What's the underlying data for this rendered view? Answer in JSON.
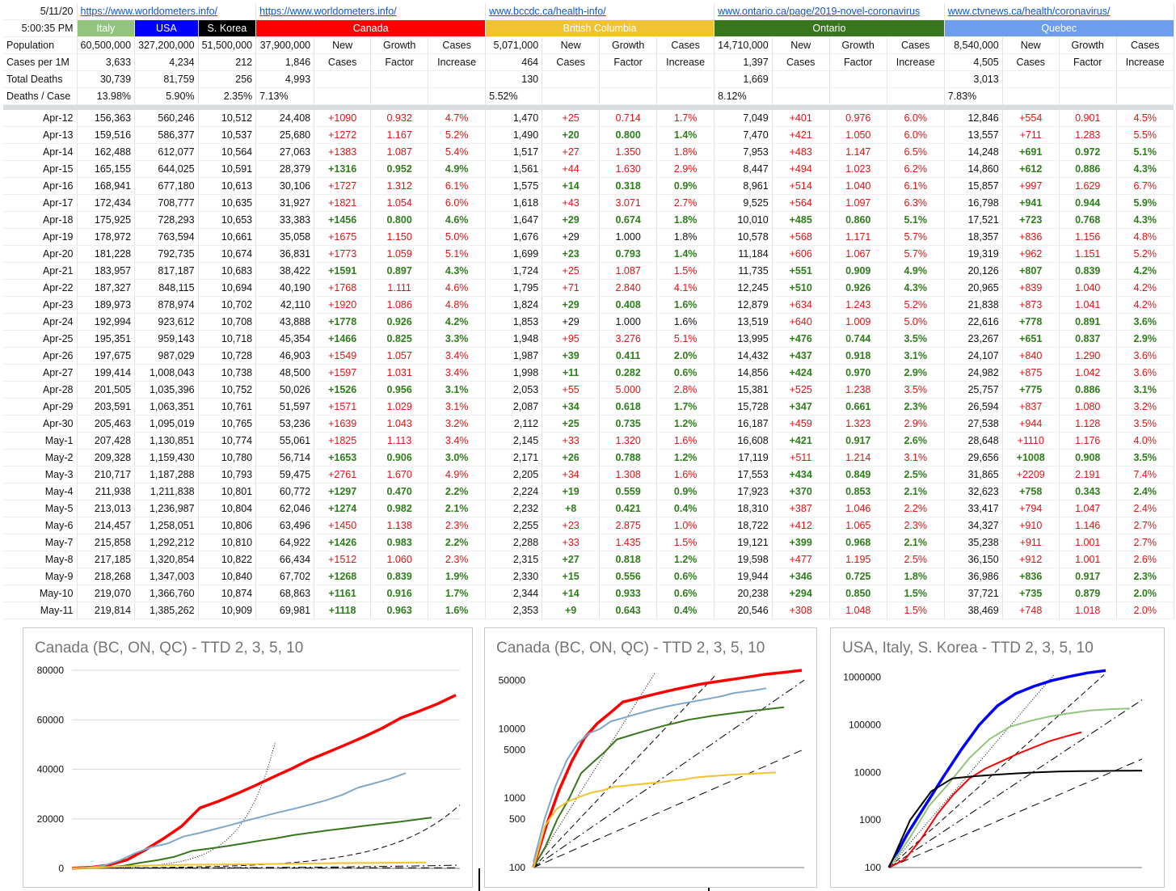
{
  "header": {
    "date": "5/11/20",
    "time": "5:00:35 PM",
    "links": [
      "https://www.worldometers.info/",
      "https://www.worldometers.info/",
      "www.bccdc.ca/health-info/",
      "www.ontario.ca/page/2019-novel-coronavirus",
      "www.ctvnews.ca/health/coronavirus/"
    ],
    "countries": [
      "Italy",
      "USA",
      "S. Korea"
    ],
    "regions": [
      "Canada",
      "British Columbia",
      "Ontario",
      "Quebec"
    ],
    "row_labels": [
      "Population",
      "Cases per 1M",
      "Total Deaths",
      "Deaths / Case"
    ],
    "col_new": [
      "New",
      "Cases"
    ],
    "col_growth": [
      "Growth",
      "Factor"
    ],
    "col_cases": [
      "Cases",
      "Increase"
    ],
    "population": [
      "60,500,000",
      "327,200,000",
      "51,500,000",
      "37,900,000",
      "5,071,000",
      "14,710,000",
      "8,540,000"
    ],
    "cases_per_1m": [
      "3,633",
      "4,234",
      "212",
      "1,846",
      "464",
      "1,397",
      "4,505"
    ],
    "total_deaths": [
      "30,739",
      "81,759",
      "256",
      "4,993",
      "130",
      "1,669",
      "3,013"
    ],
    "deaths_per_case": [
      "13.98%",
      "5.90%",
      "2.35%",
      "7.13%",
      "5.52%",
      "8.12%",
      "7.83%"
    ],
    "colors": {
      "italy": "#93c47d",
      "usa": "#0000ff",
      "korea": "#000000",
      "canada": "#ff0000",
      "bc": "#f1c232",
      "ontario": "#38761d",
      "quebec": "#6d9eeb"
    }
  },
  "rows": [
    [
      "Apr-12",
      "156,363",
      "560,246",
      "10,512",
      "24,408",
      "+1090",
      "0.932",
      "4.7%",
      "1,470",
      "+25",
      "0.714",
      "1.7%",
      "7,049",
      "+401",
      "0.976",
      "6.0%",
      "12,846",
      "+554",
      "0.901",
      "4.5%"
    ],
    [
      "Apr-13",
      "159,516",
      "586,377",
      "10,537",
      "25,680",
      "+1272",
      "1.167",
      "5.2%",
      "1,490",
      "+20",
      "0.800",
      "1.4%",
      "7,470",
      "+421",
      "1.050",
      "6.0%",
      "13,557",
      "+711",
      "1.283",
      "5.5%"
    ],
    [
      "Apr-14",
      "162,488",
      "612,077",
      "10,564",
      "27,063",
      "+1383",
      "1.087",
      "5.4%",
      "1,517",
      "+27",
      "1.350",
      "1.8%",
      "7,953",
      "+483",
      "1.147",
      "6.5%",
      "14,248",
      "+691",
      "0.972",
      "5.1%"
    ],
    [
      "Apr-15",
      "165,155",
      "644,025",
      "10,591",
      "28,379",
      "+1316",
      "0.952",
      "4.9%",
      "1,561",
      "+44",
      "1.630",
      "2.9%",
      "8,447",
      "+494",
      "1.023",
      "6.2%",
      "14,860",
      "+612",
      "0.886",
      "4.3%"
    ],
    [
      "Apr-16",
      "168,941",
      "677,180",
      "10,613",
      "30,106",
      "+1727",
      "1.312",
      "6.1%",
      "1,575",
      "+14",
      "0.318",
      "0.9%",
      "8,961",
      "+514",
      "1.040",
      "6.1%",
      "15,857",
      "+997",
      "1.629",
      "6.7%"
    ],
    [
      "Apr-17",
      "172,434",
      "708,777",
      "10,635",
      "31,927",
      "+1821",
      "1.054",
      "6.0%",
      "1,618",
      "+43",
      "3.071",
      "2.7%",
      "9,525",
      "+564",
      "1.097",
      "6.3%",
      "16,798",
      "+941",
      "0.944",
      "5.9%"
    ],
    [
      "Apr-18",
      "175,925",
      "728,293",
      "10,653",
      "33,383",
      "+1456",
      "0.800",
      "4.6%",
      "1,647",
      "+29",
      "0.674",
      "1.8%",
      "10,010",
      "+485",
      "0.860",
      "5.1%",
      "17,521",
      "+723",
      "0.768",
      "4.3%"
    ],
    [
      "Apr-19",
      "178,972",
      "763,594",
      "10,661",
      "35,058",
      "+1675",
      "1.150",
      "5.0%",
      "1,676",
      "+29",
      "1.000",
      "1.8%",
      "10,578",
      "+568",
      "1.171",
      "5.7%",
      "18,357",
      "+836",
      "1.156",
      "4.8%"
    ],
    [
      "Apr-20",
      "181,228",
      "792,735",
      "10,674",
      "36,831",
      "+1773",
      "1.059",
      "5.1%",
      "1,699",
      "+23",
      "0.793",
      "1.4%",
      "11,184",
      "+606",
      "1.067",
      "5.7%",
      "19,319",
      "+962",
      "1.151",
      "5.2%"
    ],
    [
      "Apr-21",
      "183,957",
      "817,187",
      "10,683",
      "38,422",
      "+1591",
      "0.897",
      "4.3%",
      "1,724",
      "+25",
      "1.087",
      "1.5%",
      "11,735",
      "+551",
      "0.909",
      "4.9%",
      "20,126",
      "+807",
      "0.839",
      "4.2%"
    ],
    [
      "Apr-22",
      "187,327",
      "848,115",
      "10,694",
      "40,190",
      "+1768",
      "1.111",
      "4.6%",
      "1,795",
      "+71",
      "2.840",
      "4.1%",
      "12,245",
      "+510",
      "0.926",
      "4.3%",
      "20,965",
      "+839",
      "1.040",
      "4.2%"
    ],
    [
      "Apr-23",
      "189,973",
      "878,974",
      "10,702",
      "42,110",
      "+1920",
      "1.086",
      "4.8%",
      "1,824",
      "+29",
      "0.408",
      "1.6%",
      "12,879",
      "+634",
      "1.243",
      "5.2%",
      "21,838",
      "+873",
      "1.041",
      "4.2%"
    ],
    [
      "Apr-24",
      "192,994",
      "923,612",
      "10,708",
      "43,888",
      "+1778",
      "0.926",
      "4.2%",
      "1,853",
      "+29",
      "1.000",
      "1.6%",
      "13,519",
      "+640",
      "1.009",
      "5.0%",
      "22,616",
      "+778",
      "0.891",
      "3.6%"
    ],
    [
      "Apr-25",
      "195,351",
      "959,143",
      "10,718",
      "45,354",
      "+1466",
      "0.825",
      "3.3%",
      "1,948",
      "+95",
      "3.276",
      "5.1%",
      "13,995",
      "+476",
      "0.744",
      "3.5%",
      "23,267",
      "+651",
      "0.837",
      "2.9%"
    ],
    [
      "Apr-26",
      "197,675",
      "987,029",
      "10,728",
      "46,903",
      "+1549",
      "1.057",
      "3.4%",
      "1,987",
      "+39",
      "0.411",
      "2.0%",
      "14,432",
      "+437",
      "0.918",
      "3.1%",
      "24,107",
      "+840",
      "1.290",
      "3.6%"
    ],
    [
      "Apr-27",
      "199,414",
      "1,008,043",
      "10,738",
      "48,500",
      "+1597",
      "1.031",
      "3.4%",
      "1,998",
      "+11",
      "0.282",
      "0.6%",
      "14,856",
      "+424",
      "0.970",
      "2.9%",
      "24,982",
      "+875",
      "1.042",
      "3.6%"
    ],
    [
      "Apr-28",
      "201,505",
      "1,035,396",
      "10,752",
      "50,026",
      "+1526",
      "0.956",
      "3.1%",
      "2,053",
      "+55",
      "5.000",
      "2.8%",
      "15,381",
      "+525",
      "1.238",
      "3.5%",
      "25,757",
      "+775",
      "0.886",
      "3.1%"
    ],
    [
      "Apr-29",
      "203,591",
      "1,063,351",
      "10,761",
      "51,597",
      "+1571",
      "1.029",
      "3.1%",
      "2,087",
      "+34",
      "0.618",
      "1.7%",
      "15,728",
      "+347",
      "0.661",
      "2.3%",
      "26,594",
      "+837",
      "1.080",
      "3.2%"
    ],
    [
      "Apr-30",
      "205,463",
      "1,095,019",
      "10,765",
      "53,236",
      "+1639",
      "1.043",
      "3.2%",
      "2,112",
      "+25",
      "0.735",
      "1.2%",
      "16,187",
      "+459",
      "1.323",
      "2.9%",
      "27,538",
      "+944",
      "1.128",
      "3.5%"
    ],
    [
      "May-1",
      "207,428",
      "1,130,851",
      "10,774",
      "55,061",
      "+1825",
      "1.113",
      "3.4%",
      "2,145",
      "+33",
      "1.320",
      "1.6%",
      "16,608",
      "+421",
      "0.917",
      "2.6%",
      "28,648",
      "+1110",
      "1.176",
      "4.0%"
    ],
    [
      "May-2",
      "209,328",
      "1,159,430",
      "10,780",
      "56,714",
      "+1653",
      "0.906",
      "3.0%",
      "2,171",
      "+26",
      "0.788",
      "1.2%",
      "17,119",
      "+511",
      "1.214",
      "3.1%",
      "29,656",
      "+1008",
      "0.908",
      "3.5%"
    ],
    [
      "May-3",
      "210,717",
      "1,187,288",
      "10,793",
      "59,475",
      "+2761",
      "1.670",
      "4.9%",
      "2,205",
      "+34",
      "1.308",
      "1.6%",
      "17,553",
      "+434",
      "0.849",
      "2.5%",
      "31,865",
      "+2209",
      "2.191",
      "7.4%"
    ],
    [
      "May-4",
      "211,938",
      "1,211,838",
      "10,801",
      "60,772",
      "+1297",
      "0.470",
      "2.2%",
      "2,224",
      "+19",
      "0.559",
      "0.9%",
      "17,923",
      "+370",
      "0.853",
      "2.1%",
      "32,623",
      "+758",
      "0.343",
      "2.4%"
    ],
    [
      "May-5",
      "213,013",
      "1,236,987",
      "10,804",
      "62,046",
      "+1274",
      "0.982",
      "2.1%",
      "2,232",
      "+8",
      "0.421",
      "0.4%",
      "18,310",
      "+387",
      "1.046",
      "2.2%",
      "33,417",
      "+794",
      "1.047",
      "2.4%"
    ],
    [
      "May-6",
      "214,457",
      "1,258,051",
      "10,806",
      "63,496",
      "+1450",
      "1.138",
      "2.3%",
      "2,255",
      "+23",
      "2.875",
      "1.0%",
      "18,722",
      "+412",
      "1.065",
      "2.3%",
      "34,327",
      "+910",
      "1.146",
      "2.7%"
    ],
    [
      "May-7",
      "215,858",
      "1,292,212",
      "10,810",
      "64,922",
      "+1426",
      "0.983",
      "2.2%",
      "2,288",
      "+33",
      "1.435",
      "1.5%",
      "19,121",
      "+399",
      "0.968",
      "2.1%",
      "35,238",
      "+911",
      "1.001",
      "2.7%"
    ],
    [
      "May-8",
      "217,185",
      "1,320,854",
      "10,822",
      "66,434",
      "+1512",
      "1.060",
      "2.3%",
      "2,315",
      "+27",
      "0.818",
      "1.2%",
      "19,598",
      "+477",
      "1.195",
      "2.5%",
      "36,150",
      "+912",
      "1.001",
      "2.6%"
    ],
    [
      "May-9",
      "218,268",
      "1,347,003",
      "10,840",
      "67,702",
      "+1268",
      "0.839",
      "1.9%",
      "2,330",
      "+15",
      "0.556",
      "0.6%",
      "19,944",
      "+346",
      "0.725",
      "1.8%",
      "36,986",
      "+836",
      "0.917",
      "2.3%"
    ],
    [
      "May-10",
      "219,070",
      "1,366,760",
      "10,874",
      "68,863",
      "+1161",
      "0.916",
      "1.7%",
      "2,344",
      "+14",
      "0.933",
      "0.6%",
      "20,238",
      "+294",
      "0.850",
      "1.5%",
      "37,721",
      "+735",
      "0.879",
      "2.0%"
    ],
    [
      "May-11",
      "219,814",
      "1,385,262",
      "10,909",
      "69,981",
      "+1118",
      "0.963",
      "1.6%",
      "2,353",
      "+9",
      "0.643",
      "0.4%",
      "20,546",
      "+308",
      "1.048",
      "1.5%",
      "38,469",
      "+748",
      "1.018",
      "2.0%"
    ]
  ],
  "chart_data": [
    {
      "type": "line",
      "title": "Canada (BC, ON, QC) - TTD 2, 3, 5, 10",
      "yscale": "linear",
      "ylim": [
        0,
        80000
      ],
      "yticks": [
        0,
        20000,
        40000,
        60000,
        80000
      ],
      "ytick_labels": [
        "0",
        "20000",
        "40000",
        "60000",
        "80000"
      ],
      "series": [
        {
          "color": "#ff0000",
          "values": [
            100,
            400,
            1300,
            3400,
            7400,
            12000,
            17000,
            24408,
            27063,
            30106,
            33383,
            36831,
            40190,
            43888,
            46903,
            50026,
            53236,
            56714,
            60772,
            63496,
            66434,
            69981
          ]
        },
        {
          "color": "#7fa7c9",
          "values": [
            50,
            300,
            1100,
            3200,
            6200,
            8600,
            10000,
            12846,
            14248,
            15857,
            17521,
            19319,
            20965,
            22616,
            24107,
            25757,
            27538,
            29656,
            32623,
            34327,
            36150,
            38469
          ]
        },
        {
          "color": "#38761d",
          "values": [
            20,
            100,
            400,
            1000,
            2300,
            3300,
            4700,
            7049,
            7953,
            8961,
            10010,
            11184,
            12245,
            13519,
            14432,
            15381,
            16187,
            17119,
            17923,
            18722,
            19598,
            20546
          ]
        },
        {
          "color": "#f1c232",
          "values": [
            40,
            200,
            500,
            800,
            1000,
            1200,
            1300,
            1470,
            1517,
            1575,
            1647,
            1699,
            1795,
            1853,
            1987,
            2053,
            2112,
            2171,
            2224,
            2255,
            2315,
            2353
          ]
        }
      ]
    },
    {
      "type": "line",
      "title": "Canada (BC, ON, QC) - TTD 2, 3, 5, 10",
      "yscale": "log",
      "ylim": [
        100,
        70000
      ],
      "yticks": [
        100,
        500,
        1000,
        5000,
        10000,
        50000
      ],
      "ytick_labels": [
        "100",
        "500",
        "1000",
        "5000",
        "10000",
        "50000"
      ],
      "series": [
        {
          "color": "#ff0000",
          "values": [
            100,
            400,
            1300,
            3400,
            7400,
            12000,
            17000,
            24408,
            27063,
            30106,
            33383,
            36831,
            40190,
            43888,
            46903,
            50026,
            53236,
            56714,
            60772,
            63496,
            66434,
            69981
          ]
        },
        {
          "color": "#7fa7c9",
          "values": [
            120,
            500,
            1500,
            3500,
            6200,
            8600,
            10000,
            12846,
            14248,
            15857,
            17521,
            19319,
            20965,
            22616,
            24107,
            25757,
            27538,
            29656,
            32623,
            34327,
            36150,
            38469
          ]
        },
        {
          "color": "#38761d",
          "values": [
            100,
            200,
            500,
            1000,
            2300,
            3300,
            4700,
            7049,
            7953,
            8961,
            10010,
            11184,
            12245,
            13519,
            14432,
            15381,
            16187,
            17119,
            17923,
            18722,
            19598,
            20546
          ]
        },
        {
          "color": "#f1c232",
          "values": [
            100,
            400,
            700,
            900,
            1050,
            1200,
            1300,
            1470,
            1517,
            1575,
            1647,
            1699,
            1795,
            1853,
            1987,
            2053,
            2112,
            2171,
            2224,
            2255,
            2315,
            2353
          ]
        }
      ]
    },
    {
      "type": "line",
      "title": "USA, Italy, S. Korea - TTD 2, 3, 5, 10",
      "yscale": "log",
      "ylim": [
        100,
        1400000
      ],
      "yticks": [
        100,
        1000,
        10000,
        100000,
        1000000
      ],
      "ytick_labels": [
        "100",
        "1000",
        "10000",
        "100000",
        "1000000"
      ],
      "series": [
        {
          "color": "#0000ff",
          "values": [
            100,
            500,
            2000,
            8000,
            30000,
            100000,
            250000,
            450000,
            640000,
            850000,
            1035000,
            1236987,
            1385262
          ]
        },
        {
          "color": "#93c47d",
          "values": [
            100,
            400,
            2000,
            6000,
            20000,
            50000,
            90000,
            120000,
            150000,
            175000,
            200000,
            213000,
            219814
          ]
        },
        {
          "color": "#ff0000",
          "values": [
            100,
            150,
            400,
            1300,
            3400,
            7400,
            12000,
            17000,
            24408,
            33383,
            45354,
            56714,
            69981
          ]
        },
        {
          "color": "#000000",
          "values": [
            100,
            1000,
            4000,
            7500,
            8300,
            8900,
            9500,
            10000,
            10400,
            10600,
            10700,
            10800,
            10909
          ]
        }
      ]
    }
  ]
}
